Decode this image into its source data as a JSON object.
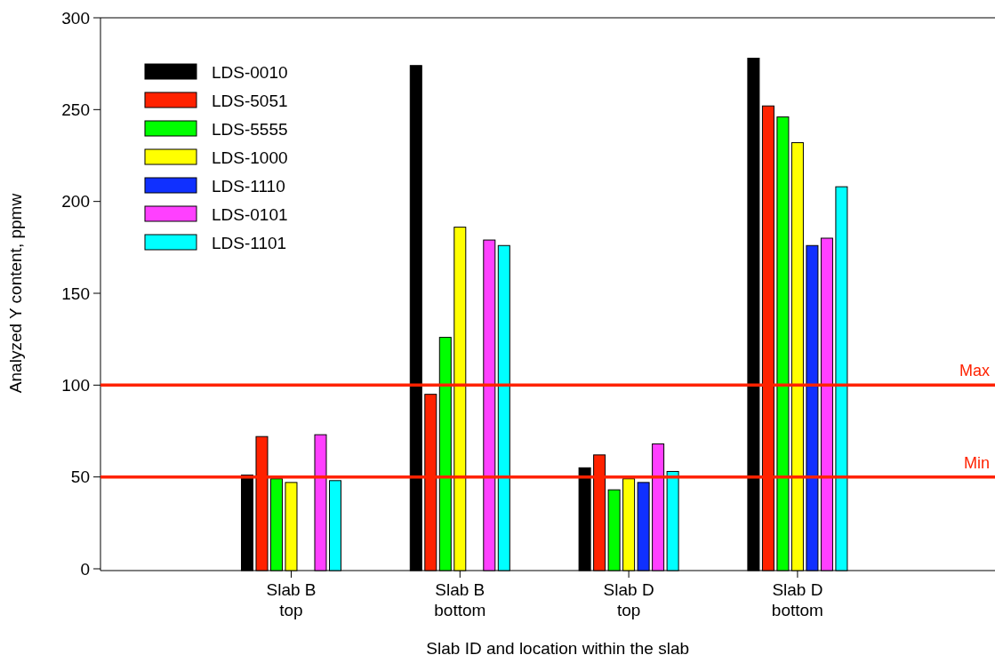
{
  "chart_data": {
    "type": "bar",
    "xlabel": "Slab ID and location within the slab",
    "ylabel": "Analyzed Y content, ppmw",
    "categories": [
      "Slab B\ntop",
      "Slab B\nbottom",
      "Slab D\ntop",
      "Slab D\nbottom"
    ],
    "series": [
      {
        "name": "LDS-0010",
        "color": "#000000",
        "values": [
          51,
          274,
          55,
          278
        ]
      },
      {
        "name": "LDS-5051",
        "color": "#ff2200",
        "values": [
          72,
          95,
          62,
          252
        ]
      },
      {
        "name": "LDS-5555",
        "color": "#00ff00",
        "values": [
          49,
          126,
          43,
          246
        ]
      },
      {
        "name": "LDS-1000",
        "color": "#ffff00",
        "values": [
          47,
          186,
          49,
          232
        ]
      },
      {
        "name": "LDS-1110",
        "color": "#1030ff",
        "values": [
          null,
          null,
          47,
          176
        ]
      },
      {
        "name": "LDS-0101",
        "color": "#ff40ff",
        "values": [
          73,
          179,
          68,
          180
        ]
      },
      {
        "name": "LDS-1101",
        "color": "#00ffff",
        "values": [
          48,
          176,
          53,
          208
        ]
      }
    ],
    "ylim": [
      0,
      300
    ],
    "yticks": [
      0,
      50,
      100,
      150,
      200,
      250,
      300
    ],
    "ref_lines": [
      {
        "axis": "y",
        "value": 100,
        "label": "Max",
        "color": "#ff2200"
      },
      {
        "axis": "y",
        "value": 50,
        "label": "Min",
        "color": "#ff2200"
      }
    ],
    "legend": "top left"
  }
}
